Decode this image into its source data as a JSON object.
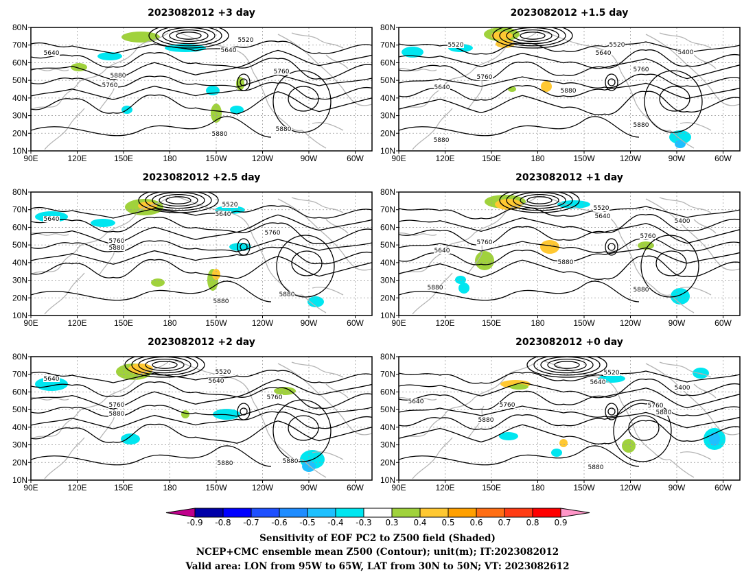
{
  "panels": [
    {
      "title": "2023082012 +3 day",
      "labels": [
        "5640",
        "5520",
        "5640",
        "5760",
        "5880",
        "5760",
        "5880",
        "5880"
      ]
    },
    {
      "title": "2023082012 +1.5 day",
      "labels": [
        "5520",
        "5520",
        "5640",
        "5400",
        "5760",
        "5640",
        "5760",
        "5880",
        "5880",
        "5880"
      ]
    },
    {
      "title": "2023082012 +2.5 day",
      "labels": [
        "5640",
        "5520",
        "5640",
        "5760",
        "5760",
        "5880",
        "5880",
        "5880"
      ]
    },
    {
      "title": "2023082012 +1 day",
      "labels": [
        "5520",
        "5640",
        "5400",
        "5760",
        "5760",
        "5640",
        "5880",
        "5880",
        "5880"
      ]
    },
    {
      "title": "2023082012 +2 day",
      "labels": [
        "5640",
        "5520",
        "5640",
        "5760",
        "5760",
        "5880",
        "5880",
        "5880"
      ]
    },
    {
      "title": "2023082012 +0 day",
      "labels": [
        "5520",
        "5640",
        "5400",
        "5640",
        "5760",
        "5760",
        "5880",
        "5880",
        "5880"
      ]
    }
  ],
  "lat_ticks": [
    "80N",
    "70N",
    "60N",
    "50N",
    "40N",
    "30N",
    "20N",
    "10N"
  ],
  "lon_ticks": [
    "90E",
    "120E",
    "150E",
    "180",
    "150W",
    "120W",
    "90W",
    "60W"
  ],
  "colorbar": {
    "ticks": [
      "-0.9",
      "-0.8",
      "-0.7",
      "-0.6",
      "-0.5",
      "-0.4",
      "-0.3",
      "0.3",
      "0.4",
      "0.5",
      "0.6",
      "0.7",
      "0.8",
      "0.9"
    ],
    "colors": [
      "#c0008c",
      "#0000a8",
      "#0000ff",
      "#1e50ff",
      "#1e8cff",
      "#1ec0ff",
      "#00e6f0",
      "#ffffff",
      "#a0d23c",
      "#ffc832",
      "#ffa000",
      "#ff6e14",
      "#ff3c14",
      "#ff0000",
      "#ff96c8"
    ]
  },
  "caption": {
    "line1": "Sensitivity of EOF PC2 to Z500 field (Shaded)",
    "line2": "NCEP+CMC ensemble mean Z500 (Contour); unit(m); IT:2023082012",
    "line3": "Valid area: LON from 95W to 65W, LAT from 30N to 50N; VT: 2023082612"
  }
}
